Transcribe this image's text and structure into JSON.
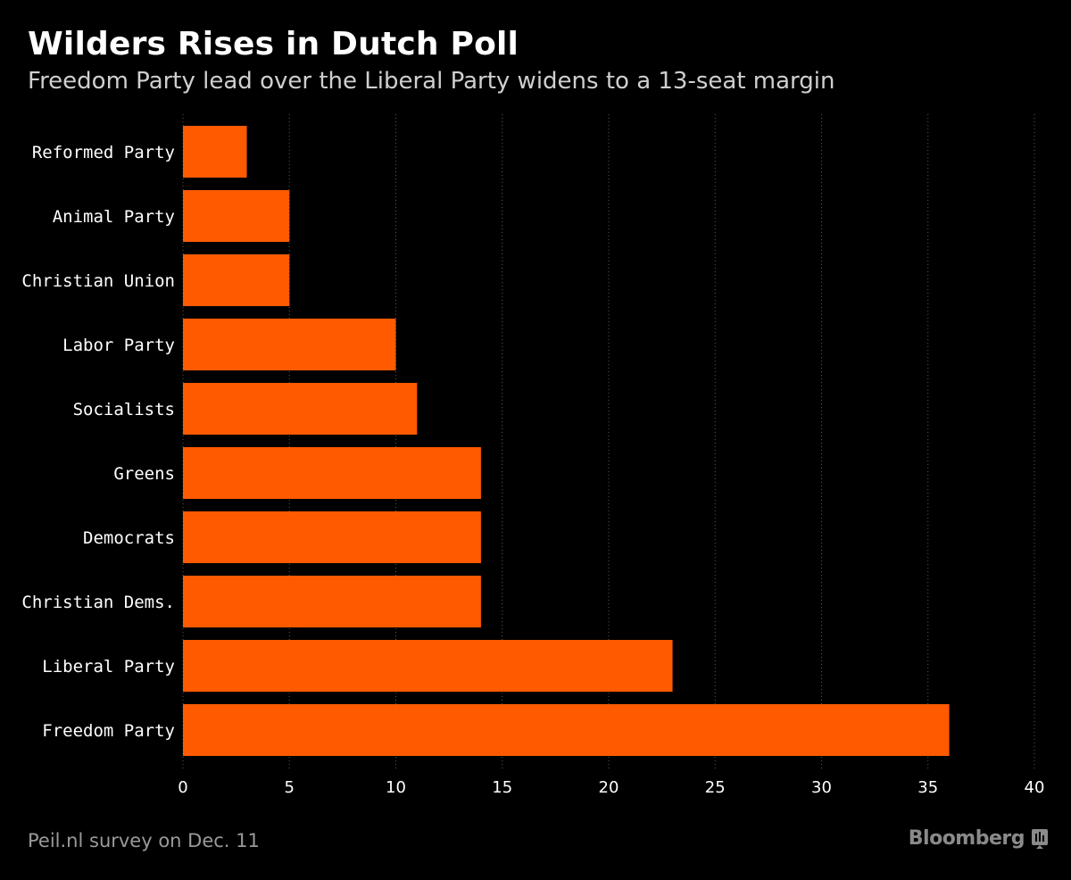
{
  "chart_data": {
    "type": "bar",
    "orientation": "horizontal",
    "title": "Wilders Rises in Dutch Poll",
    "subtitle": "Freedom Party lead over the Liberal Party widens to a 13-seat margin",
    "categories": [
      "Reformed Party",
      "Animal Party",
      "Christian Union",
      "Labor Party",
      "Socialists",
      "Greens",
      "Democrats",
      "Christian Dems.",
      "Liberal Party",
      "Freedom Party"
    ],
    "values": [
      3,
      5,
      5,
      10,
      11,
      14,
      14,
      14,
      23,
      36
    ],
    "xlim": [
      0,
      40
    ],
    "xticks": [
      0,
      5,
      10,
      15,
      20,
      25,
      30,
      35,
      40
    ],
    "xlabel": "",
    "ylabel": "",
    "grid": "vertical dotted",
    "bar_color": "#ff5a00",
    "source": "Peil.nl survey on Dec. 11"
  },
  "brand": {
    "name": "Bloomberg",
    "icon": "bloomberg-terminal-icon",
    "color": "#8a8a8a"
  }
}
